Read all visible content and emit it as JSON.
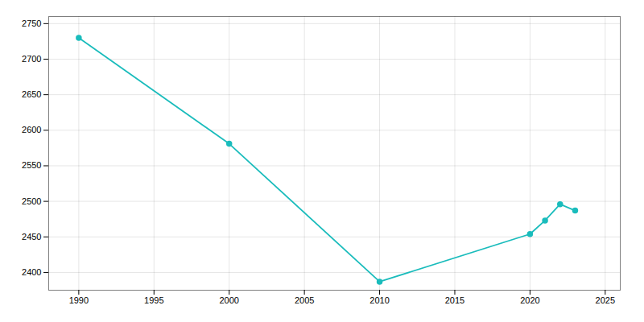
{
  "chart_data": {
    "type": "line",
    "x": [
      1990,
      2000,
      2010,
      2020,
      2021,
      2022,
      2023
    ],
    "values": [
      2730,
      2581,
      2387,
      2454,
      2473,
      2496,
      2487
    ],
    "color": "#1abcbc",
    "marker": "circle",
    "xlim": [
      1988,
      2026
    ],
    "ylim": [
      2375,
      2760
    ],
    "xticks": [
      1990,
      1995,
      2000,
      2005,
      2010,
      2015,
      2020,
      2025
    ],
    "yticks": [
      2400,
      2450,
      2500,
      2550,
      2600,
      2650,
      2700,
      2750
    ],
    "grid": true
  }
}
